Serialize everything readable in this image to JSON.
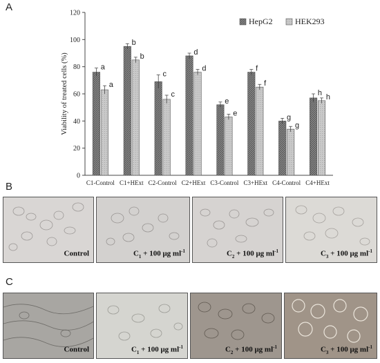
{
  "panel_letters": [
    "A",
    "B",
    "C"
  ],
  "chart_data": {
    "type": "bar",
    "ylabel": "Viability of treated cells (%)",
    "xlabel": "",
    "ylim": [
      0,
      120
    ],
    "yticks": [
      0,
      20,
      40,
      60,
      80,
      100,
      120
    ],
    "categories": [
      "C1-Control",
      "C1+HExt",
      "C2-Control",
      "C2+HExt",
      "C3-Control",
      "C3+HExt",
      "C4-Control",
      "C4+HExt"
    ],
    "series": [
      {
        "name": "HepG2",
        "color": "#8a8a8a",
        "values": [
          76,
          95,
          69,
          88,
          52,
          76,
          40,
          57
        ],
        "errors": [
          3,
          2,
          5,
          2,
          2,
          2,
          2,
          3
        ],
        "letters": [
          "a",
          "b",
          "c",
          "d",
          "e",
          "f",
          "g",
          "h"
        ]
      },
      {
        "name": "HEK293",
        "color": "#c9c9c9",
        "values": [
          63,
          85,
          56,
          76,
          43,
          65,
          34,
          55
        ],
        "errors": [
          3,
          2,
          3,
          2,
          2,
          2,
          2,
          2
        ],
        "letters": [
          "a",
          "b",
          "c",
          "d",
          "e",
          "f",
          "g",
          "h"
        ]
      }
    ],
    "legend": "top-right",
    "grid": false
  },
  "panel_b": [
    {
      "base": "Control",
      "sub": "",
      "tail": "",
      "sup": ""
    },
    {
      "base": "C",
      "sub": "1",
      "tail": " + 100 μg ml",
      "sup": "-1"
    },
    {
      "base": "C",
      "sub": "2",
      "tail": " + 100 μg ml",
      "sup": "-1"
    },
    {
      "base": "C",
      "sub": "3",
      "tail": " + 100 μg ml",
      "sup": "-1"
    }
  ],
  "panel_c": [
    {
      "base": "Control",
      "sub": "",
      "tail": "",
      "sup": ""
    },
    {
      "base": "C",
      "sub": "1",
      "tail": " + 100 μg ml",
      "sup": "-1"
    },
    {
      "base": "C",
      "sub": "2",
      "tail": " + 100 μg ml",
      "sup": "-1"
    },
    {
      "base": "C",
      "sub": "3",
      "tail": " + 100 μg ml",
      "sup": "-1"
    }
  ]
}
